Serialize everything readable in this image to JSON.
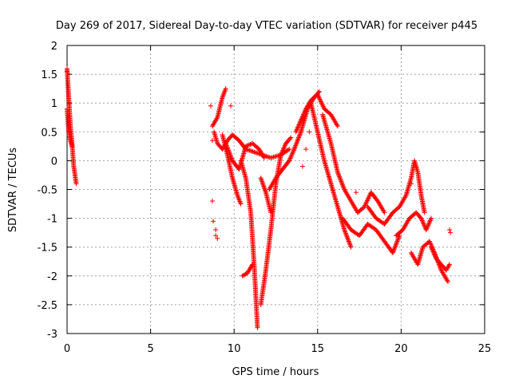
{
  "chart_data": {
    "type": "scatter",
    "title": "Day 269 of 2017, Sidereal Day-to-day VTEC variation (SDTVAR) for receiver p445",
    "xlabel": "GPS time / hours",
    "ylabel": "SDTVAR / TECUs",
    "xlim": [
      0,
      25
    ],
    "ylim": [
      -3,
      2
    ],
    "xticks": [
      0,
      5,
      10,
      15,
      20,
      25
    ],
    "yticks": [
      -3,
      -2.5,
      -2,
      -1.5,
      -1,
      -0.5,
      0,
      0.5,
      1,
      1.5,
      2
    ],
    "xtick_labels": [
      "0",
      "5",
      "10",
      "15",
      "20",
      "25"
    ],
    "ytick_labels": [
      "-3",
      "-2.5",
      "-2",
      "-1.5",
      "-1",
      "-0.5",
      "0",
      "0.5",
      "1",
      "1.5",
      "2"
    ],
    "grid": true,
    "marker": "+",
    "series": [
      {
        "name": "SDTVAR",
        "color": "#ff0000",
        "curves": [
          [
            [
              0.0,
              1.6
            ],
            [
              0.1,
              1.1
            ],
            [
              0.2,
              0.6
            ],
            [
              0.3,
              0.3
            ],
            [
              0.4,
              -0.1
            ],
            [
              0.55,
              -0.4
            ]
          ],
          [
            [
              0.0,
              0.9
            ],
            [
              0.1,
              0.5
            ],
            [
              0.2,
              0.35
            ],
            [
              0.3,
              0.25
            ]
          ],
          [
            [
              8.7,
              0.6
            ],
            [
              9.0,
              0.75
            ],
            [
              9.3,
              1.1
            ],
            [
              9.5,
              1.25
            ]
          ],
          [
            [
              8.8,
              0.5
            ],
            [
              9.0,
              0.3
            ],
            [
              9.3,
              0.2
            ],
            [
              9.6,
              0.35
            ],
            [
              9.9,
              0.45
            ],
            [
              10.3,
              0.35
            ],
            [
              10.7,
              0.2
            ],
            [
              11.2,
              0.15
            ],
            [
              11.7,
              0.1
            ],
            [
              12.2,
              0.05
            ],
            [
              12.8,
              0.1
            ],
            [
              13.3,
              0.2
            ]
          ],
          [
            [
              9.3,
              0.45
            ],
            [
              9.6,
              0.1
            ],
            [
              9.9,
              -0.3
            ],
            [
              10.2,
              -0.6
            ],
            [
              10.4,
              -0.75
            ]
          ],
          [
            [
              9.5,
              0.3
            ],
            [
              9.9,
              0.0
            ],
            [
              10.3,
              -0.15
            ],
            [
              10.7,
              0.25
            ],
            [
              11.1,
              0.3
            ],
            [
              11.5,
              0.2
            ],
            [
              11.8,
              0.05
            ]
          ],
          [
            [
              10.4,
              0.0
            ],
            [
              10.7,
              -0.3
            ],
            [
              11.0,
              -0.9
            ],
            [
              11.2,
              -1.8
            ],
            [
              11.4,
              -2.9
            ]
          ],
          [
            [
              10.5,
              -2.0
            ],
            [
              10.8,
              -1.95
            ],
            [
              11.1,
              -1.8
            ]
          ],
          [
            [
              11.6,
              -0.3
            ],
            [
              11.9,
              -0.55
            ],
            [
              12.2,
              -0.9
            ]
          ],
          [
            [
              11.6,
              -2.5
            ],
            [
              11.9,
              -1.9
            ],
            [
              12.2,
              -1.2
            ],
            [
              12.5,
              -0.4
            ],
            [
              12.8,
              0.1
            ],
            [
              13.1,
              0.3
            ],
            [
              13.4,
              0.4
            ]
          ],
          [
            [
              12.1,
              -0.5
            ],
            [
              12.5,
              -0.3
            ],
            [
              12.9,
              -0.15
            ],
            [
              13.3,
              0.0
            ],
            [
              13.6,
              0.2
            ],
            [
              14.0,
              0.5
            ],
            [
              14.4,
              0.9
            ],
            [
              14.8,
              1.1
            ],
            [
              15.1,
              1.2
            ]
          ],
          [
            [
              13.7,
              0.5
            ],
            [
              14.0,
              0.7
            ],
            [
              14.3,
              0.9
            ],
            [
              14.6,
              1.05
            ],
            [
              15.0,
              1.15
            ],
            [
              15.4,
              0.9
            ],
            [
              15.8,
              0.8
            ],
            [
              16.2,
              0.6
            ]
          ],
          [
            [
              14.6,
              1.0
            ],
            [
              15.0,
              0.5
            ],
            [
              15.4,
              0.0
            ],
            [
              15.7,
              -0.3
            ],
            [
              16.0,
              -0.6
            ],
            [
              16.3,
              -0.9
            ],
            [
              16.6,
              -1.2
            ],
            [
              17.0,
              -1.5
            ]
          ],
          [
            [
              15.3,
              0.8
            ],
            [
              15.8,
              0.3
            ],
            [
              16.2,
              -0.2
            ],
            [
              16.6,
              -0.5
            ],
            [
              17.0,
              -0.7
            ],
            [
              17.4,
              -0.9
            ],
            [
              17.8,
              -0.8
            ],
            [
              18.2,
              -0.55
            ],
            [
              18.6,
              -0.7
            ],
            [
              19.0,
              -0.9
            ]
          ],
          [
            [
              16.5,
              -1.0
            ],
            [
              17.0,
              -1.2
            ],
            [
              17.5,
              -1.3
            ],
            [
              18.0,
              -1.1
            ],
            [
              18.5,
              -1.2
            ],
            [
              19.0,
              -1.4
            ],
            [
              19.5,
              -1.6
            ],
            [
              19.9,
              -1.3
            ]
          ],
          [
            [
              18.0,
              -0.8
            ],
            [
              18.5,
              -1.0
            ],
            [
              19.0,
              -1.1
            ],
            [
              19.5,
              -0.9
            ],
            [
              19.9,
              -0.8
            ],
            [
              20.3,
              -0.6
            ],
            [
              20.6,
              -0.3
            ],
            [
              20.8,
              0.0
            ],
            [
              21.0,
              -0.2
            ],
            [
              21.2,
              -0.6
            ],
            [
              21.4,
              -0.9
            ]
          ],
          [
            [
              19.7,
              -1.3
            ],
            [
              20.1,
              -1.2
            ],
            [
              20.5,
              -1.0
            ],
            [
              20.9,
              -0.9
            ],
            [
              21.2,
              -1.0
            ],
            [
              21.5,
              -1.2
            ],
            [
              21.8,
              -1.0
            ]
          ],
          [
            [
              20.6,
              -1.6
            ],
            [
              21.0,
              -1.8
            ],
            [
              21.3,
              -1.5
            ],
            [
              21.7,
              -1.4
            ],
            [
              22.0,
              -1.6
            ],
            [
              22.4,
              -1.9
            ],
            [
              22.8,
              -2.1
            ]
          ],
          [
            [
              21.8,
              -1.5
            ],
            [
              22.1,
              -1.7
            ],
            [
              22.4,
              -1.8
            ],
            [
              22.7,
              -1.9
            ],
            [
              22.9,
              -1.8
            ]
          ]
        ],
        "points": [
          [
            0.0,
            1.55
          ],
          [
            8.6,
            0.95
          ],
          [
            8.7,
            0.35
          ],
          [
            8.7,
            -0.7
          ],
          [
            8.75,
            -1.05
          ],
          [
            8.9,
            -1.2
          ],
          [
            8.9,
            -1.3
          ],
          [
            9.0,
            -1.35
          ],
          [
            9.8,
            0.95
          ],
          [
            22.9,
            -1.2
          ],
          [
            22.95,
            -1.25
          ],
          [
            20.6,
            -0.4
          ],
          [
            17.3,
            -0.55
          ],
          [
            14.5,
            0.5
          ],
          [
            14.3,
            0.2
          ],
          [
            14.1,
            -0.1
          ]
        ]
      }
    ]
  }
}
